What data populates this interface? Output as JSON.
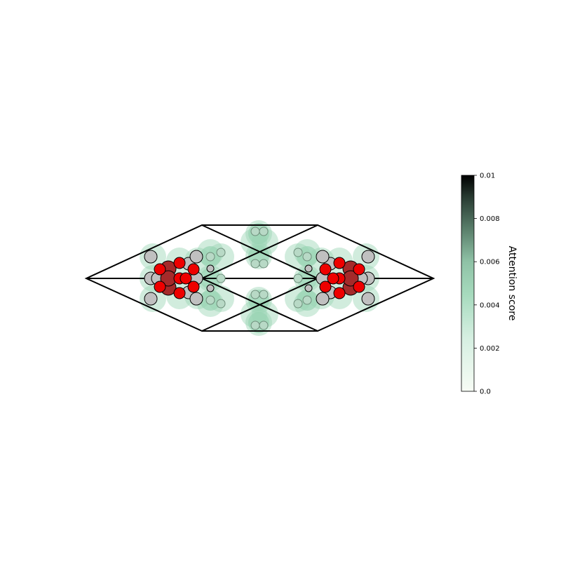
{
  "colorbar": {
    "label": "Attention score",
    "ticks": [
      "0.0",
      "0.002",
      "0.004",
      "0.006",
      "0.008",
      "0.01"
    ],
    "range": [
      0,
      0.01
    ],
    "colormap": [
      "#f7fcf5",
      "#c7e9d5",
      "#99d4b4",
      "#5f8a73",
      "#2c3e34",
      "#000000"
    ]
  },
  "colors": {
    "cell_edge": "#000000",
    "attention_halo": "#99d4b4",
    "atom_red": "#ee0000",
    "atom_darkred": "#a52a2a",
    "atom_gray": "#c0c0c0"
  }
}
